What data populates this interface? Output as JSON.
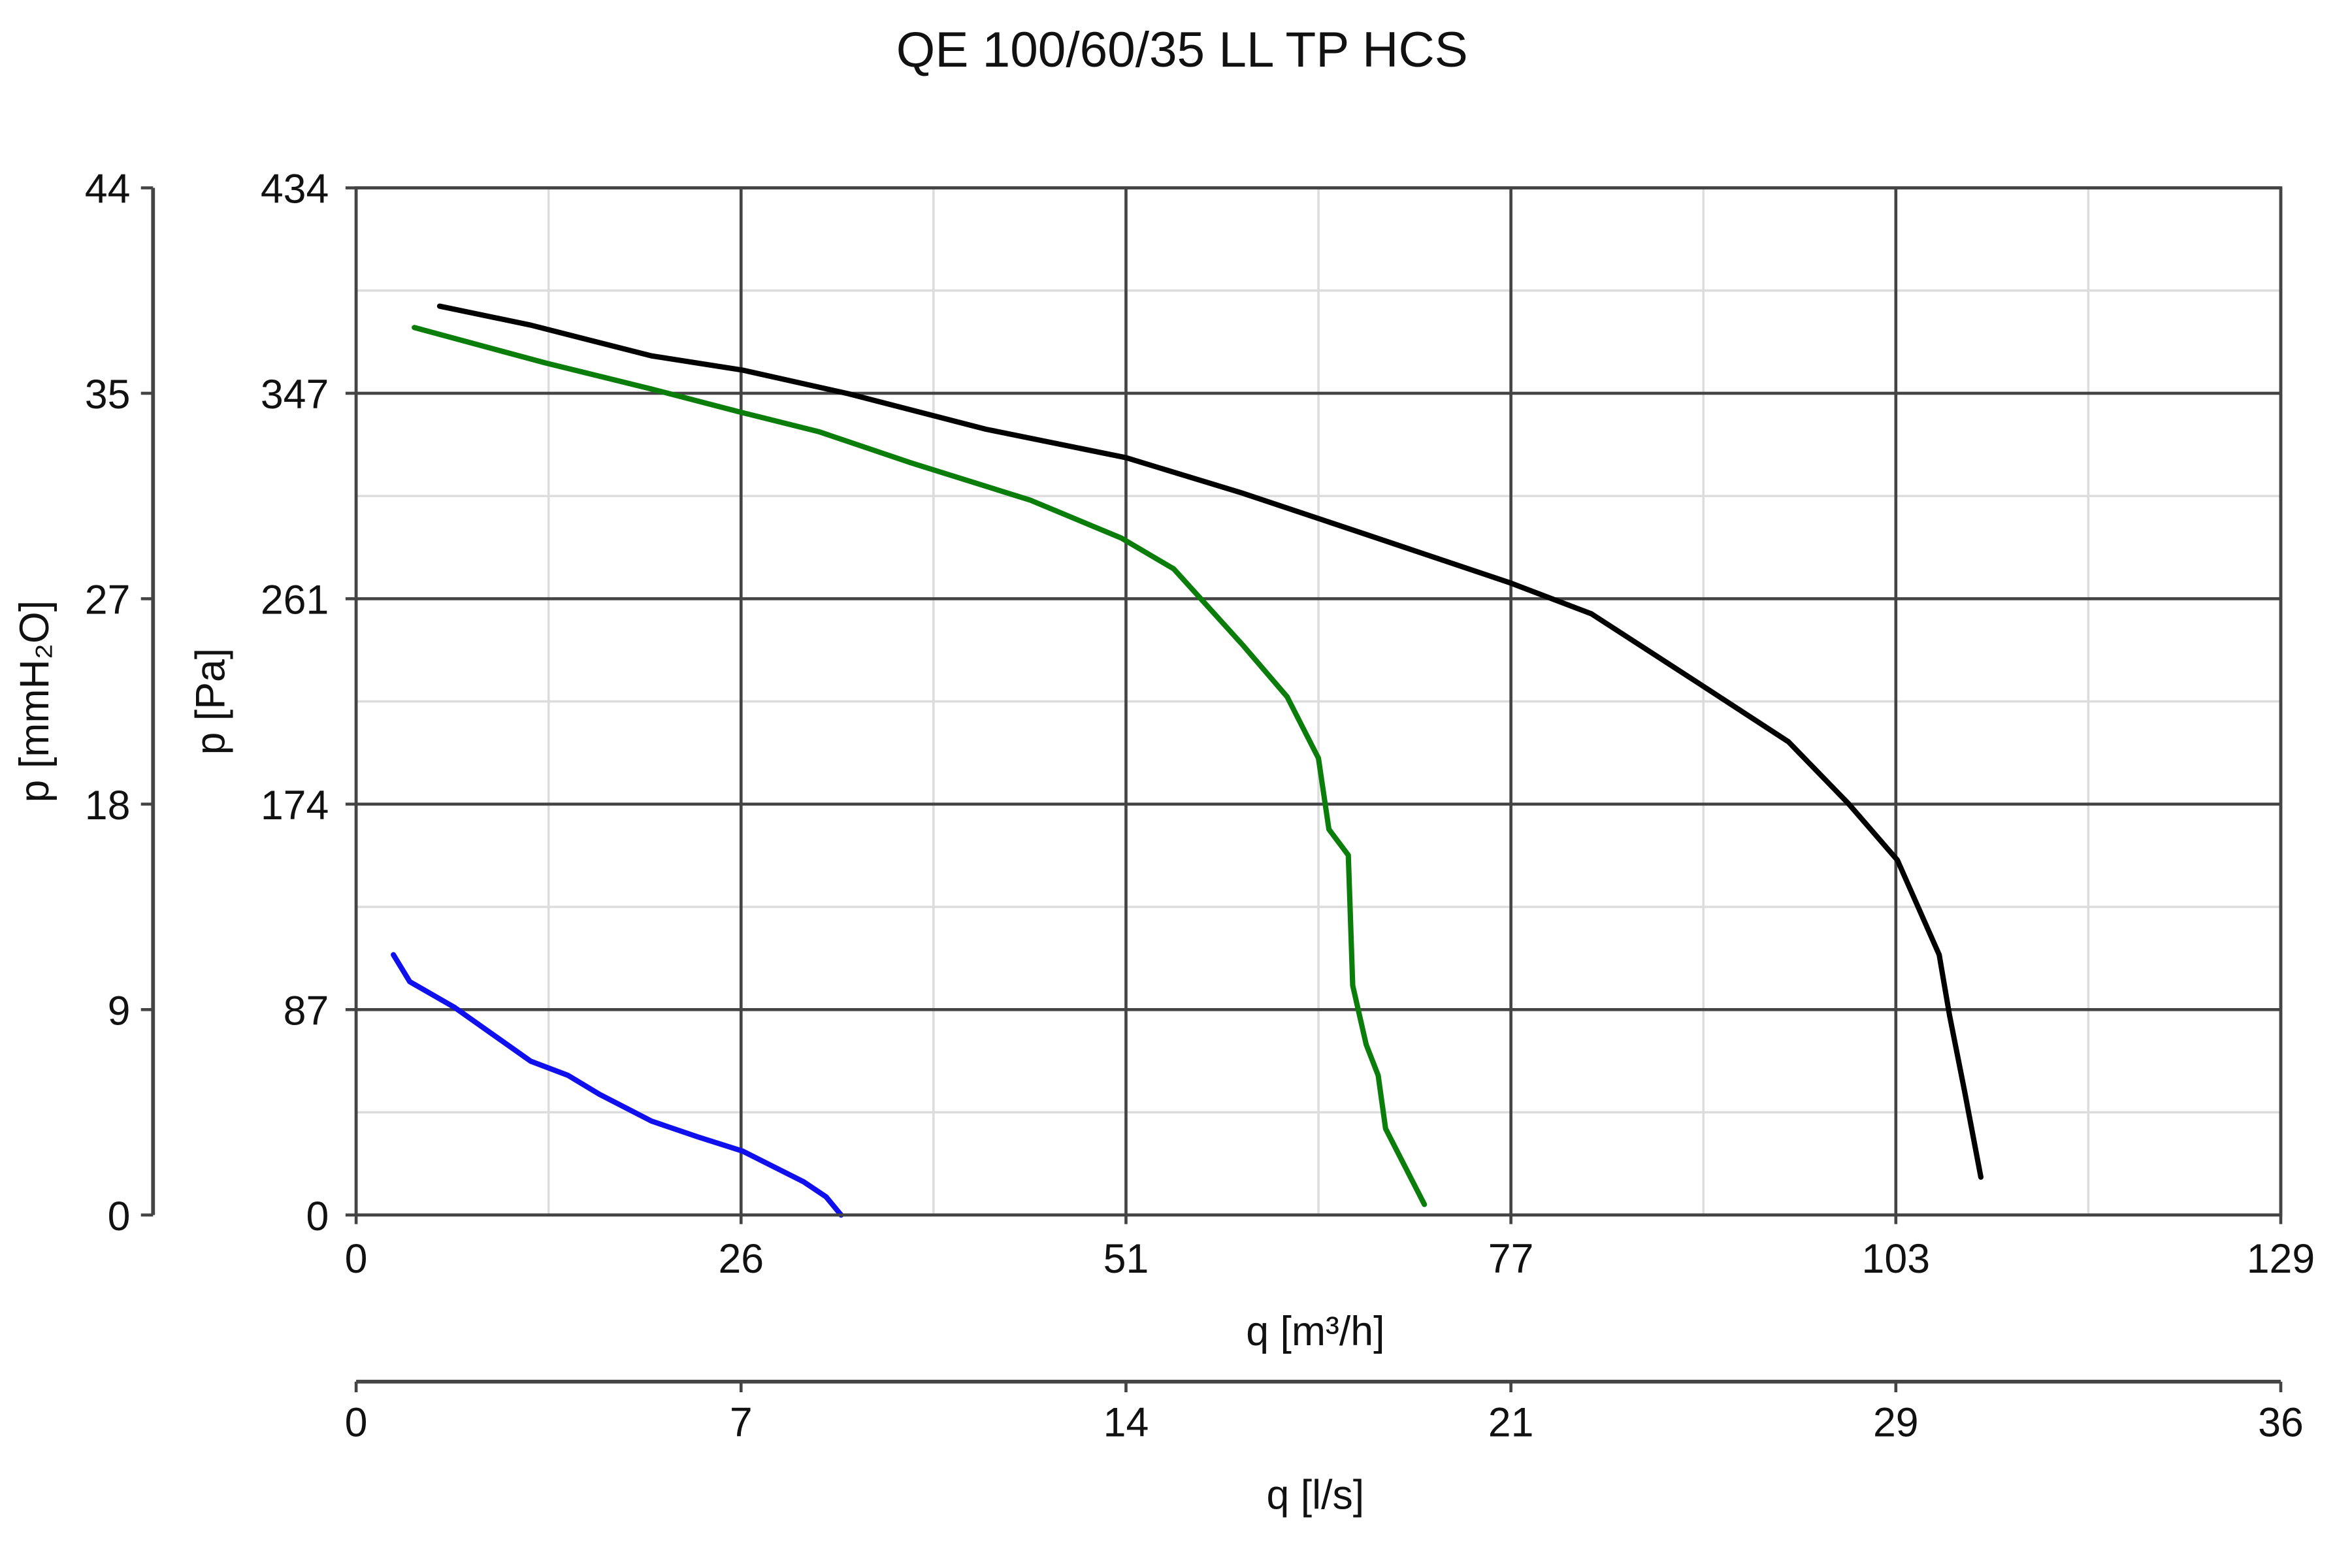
{
  "chart_data": {
    "type": "line",
    "title": "QE 100/60/35 LL TP HCS",
    "xlabel": "q [m³/h]",
    "ylabel": "p [Pa]",
    "secondary_xlabel": "q [l/s]",
    "secondary_ylabel": "p [mmH₂O]",
    "xlim": [
      0,
      129
    ],
    "ylim": [
      0,
      434
    ],
    "secondary_xlim": [
      0,
      36
    ],
    "secondary_ylim": [
      0,
      44
    ],
    "x_ticks": [
      "0",
      "26",
      "51",
      "77",
      "103",
      "129"
    ],
    "y_ticks": [
      "0",
      "87",
      "174",
      "261",
      "347",
      "434"
    ],
    "secondary_x_ticks": [
      "0",
      "7",
      "14",
      "21",
      "29",
      "36"
    ],
    "secondary_y_ticks": [
      "0",
      "9",
      "18",
      "27",
      "35",
      "44"
    ],
    "grid": true,
    "series": [
      {
        "name": "black curve",
        "color": "#000000",
        "points": [
          [
            5.6,
            384
          ],
          [
            11.7,
            376
          ],
          [
            19.8,
            363
          ],
          [
            25.9,
            357
          ],
          [
            33,
            347
          ],
          [
            42.2,
            332
          ],
          [
            51.6,
            320
          ],
          [
            59.4,
            305
          ],
          [
            67.5,
            288
          ],
          [
            77.4,
            267
          ],
          [
            82.8,
            254
          ],
          [
            89.9,
            225
          ],
          [
            96,
            200
          ],
          [
            100,
            174
          ],
          [
            103.3,
            150
          ],
          [
            106.1,
            110
          ],
          [
            106.8,
            84.5
          ],
          [
            107.8,
            52.5
          ],
          [
            108.9,
            16
          ]
        ]
      },
      {
        "name": "green curve",
        "color": "#0a7d0a",
        "points": [
          [
            3.9,
            375
          ],
          [
            12.7,
            360
          ],
          [
            19.8,
            349
          ],
          [
            25.9,
            339
          ],
          [
            31,
            331
          ],
          [
            37.1,
            318
          ],
          [
            45.2,
            302
          ],
          [
            51.3,
            286
          ],
          [
            54.8,
            273
          ],
          [
            59.4,
            241
          ],
          [
            62.4,
            219
          ],
          [
            64.5,
            193
          ],
          [
            65.2,
            163
          ],
          [
            66.5,
            152
          ],
          [
            66.8,
            97
          ],
          [
            67.7,
            72
          ],
          [
            68.5,
            59
          ],
          [
            69,
            36.5
          ],
          [
            71.6,
            4.5
          ]
        ]
      },
      {
        "name": "blue curve",
        "color": "#1010ee",
        "points": [
          [
            2.5,
            110
          ],
          [
            3.6,
            98.6
          ],
          [
            6.6,
            87.7
          ],
          [
            11.7,
            65
          ],
          [
            14.2,
            59
          ],
          [
            16.3,
            51
          ],
          [
            19.8,
            39.7
          ],
          [
            22.9,
            33
          ],
          [
            25.9,
            27
          ],
          [
            30,
            14
          ],
          [
            31.5,
            7.7
          ],
          [
            32.5,
            0
          ]
        ]
      }
    ]
  }
}
